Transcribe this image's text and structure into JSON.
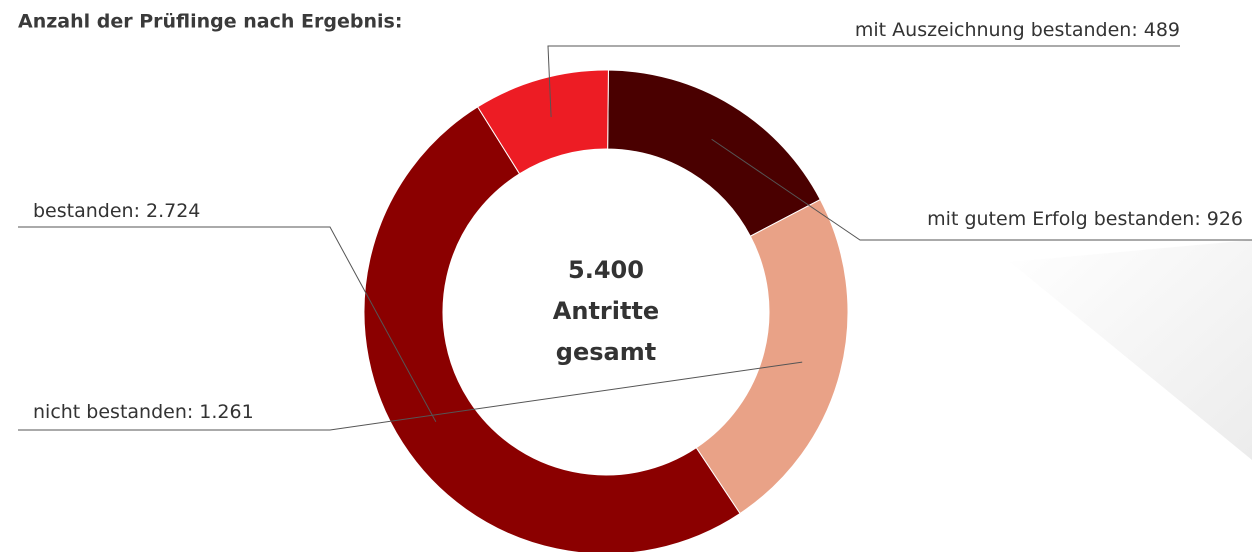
{
  "chart_data": {
    "type": "donut",
    "title": "Anzahl der Prüflinge nach Ergebnis:",
    "categories": [
      "mit gutem Erfolg bestanden:",
      "nicht bestanden:",
      "bestanden:",
      "mit Auszeichnung bestanden:"
    ],
    "values": [
      926,
      1261,
      2724,
      489
    ],
    "value_labels": [
      "926",
      "1.261",
      "2.724",
      "489"
    ],
    "colors": [
      "#4a0000",
      "#e9a287",
      "#8b0000",
      "#ed1c24"
    ],
    "total": {
      "value": 5400,
      "label": "5.400"
    },
    "center_text": [
      "Antritte",
      "gesamt"
    ]
  }
}
